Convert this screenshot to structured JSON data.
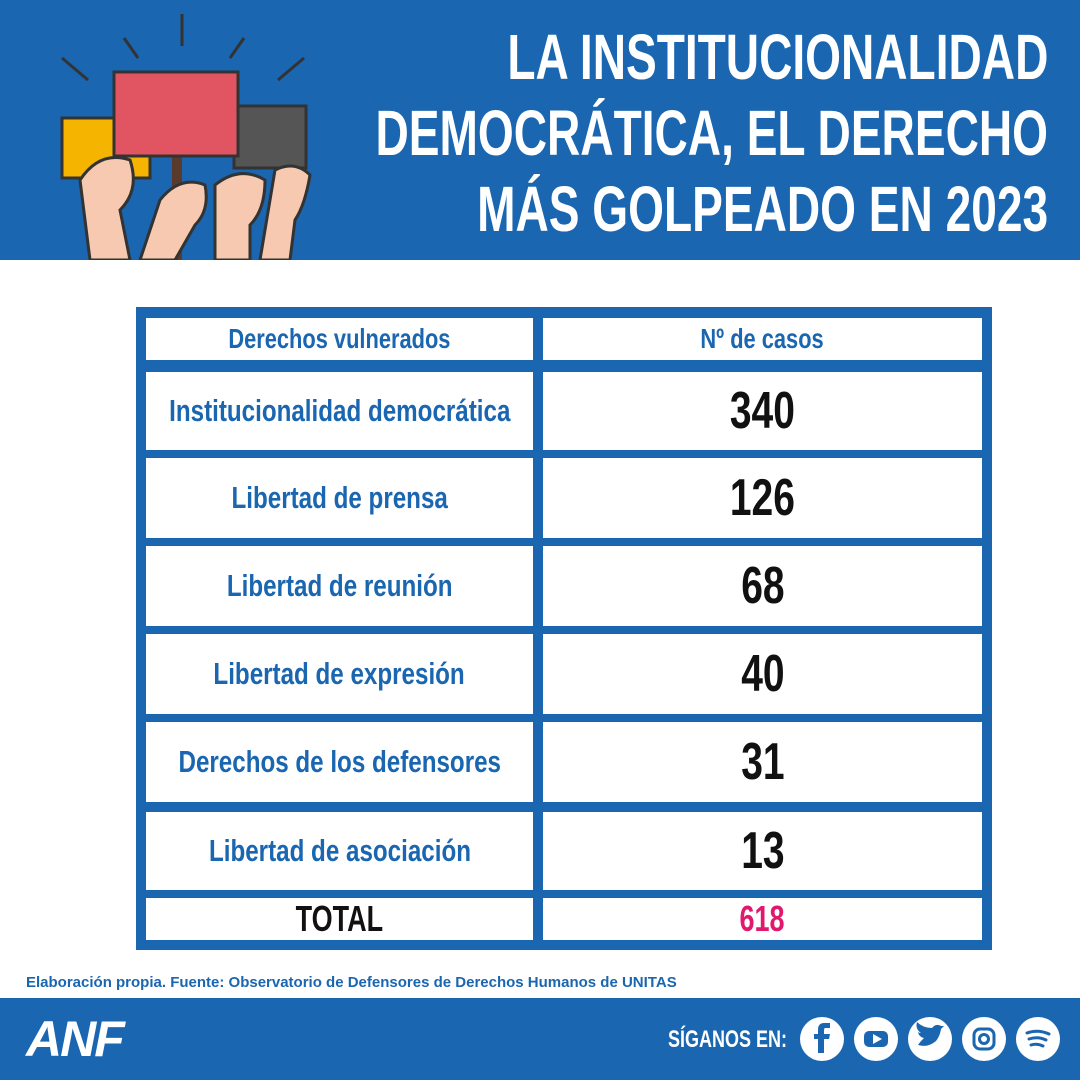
{
  "header": {
    "title": [
      "LA INSTITUCIONALIDAD",
      "DEMOCRÁTICA, EL DERECHO",
      "MÁS GOLPEADO EN 2023"
    ]
  },
  "table": {
    "headers": [
      "Derechos vulnerados",
      "Nº de casos"
    ],
    "rows": [
      [
        "Institucionalidad democrática",
        340
      ],
      [
        "Libertad de prensa",
        126
      ],
      [
        "Libertad de reunión",
        68
      ],
      [
        "Libertad de expresión",
        40
      ],
      [
        "Derechos de los defensores",
        31
      ],
      [
        "Libertad de asociación",
        13
      ]
    ],
    "total": [
      "TOTAL",
      618
    ]
  },
  "source": "Elaboración propia. Fuente: Observatorio de Defensores de Derechos Humanos de UNITAS",
  "footer": {
    "logo": "ANF",
    "follow": "SÍGANOS EN:"
  }
}
